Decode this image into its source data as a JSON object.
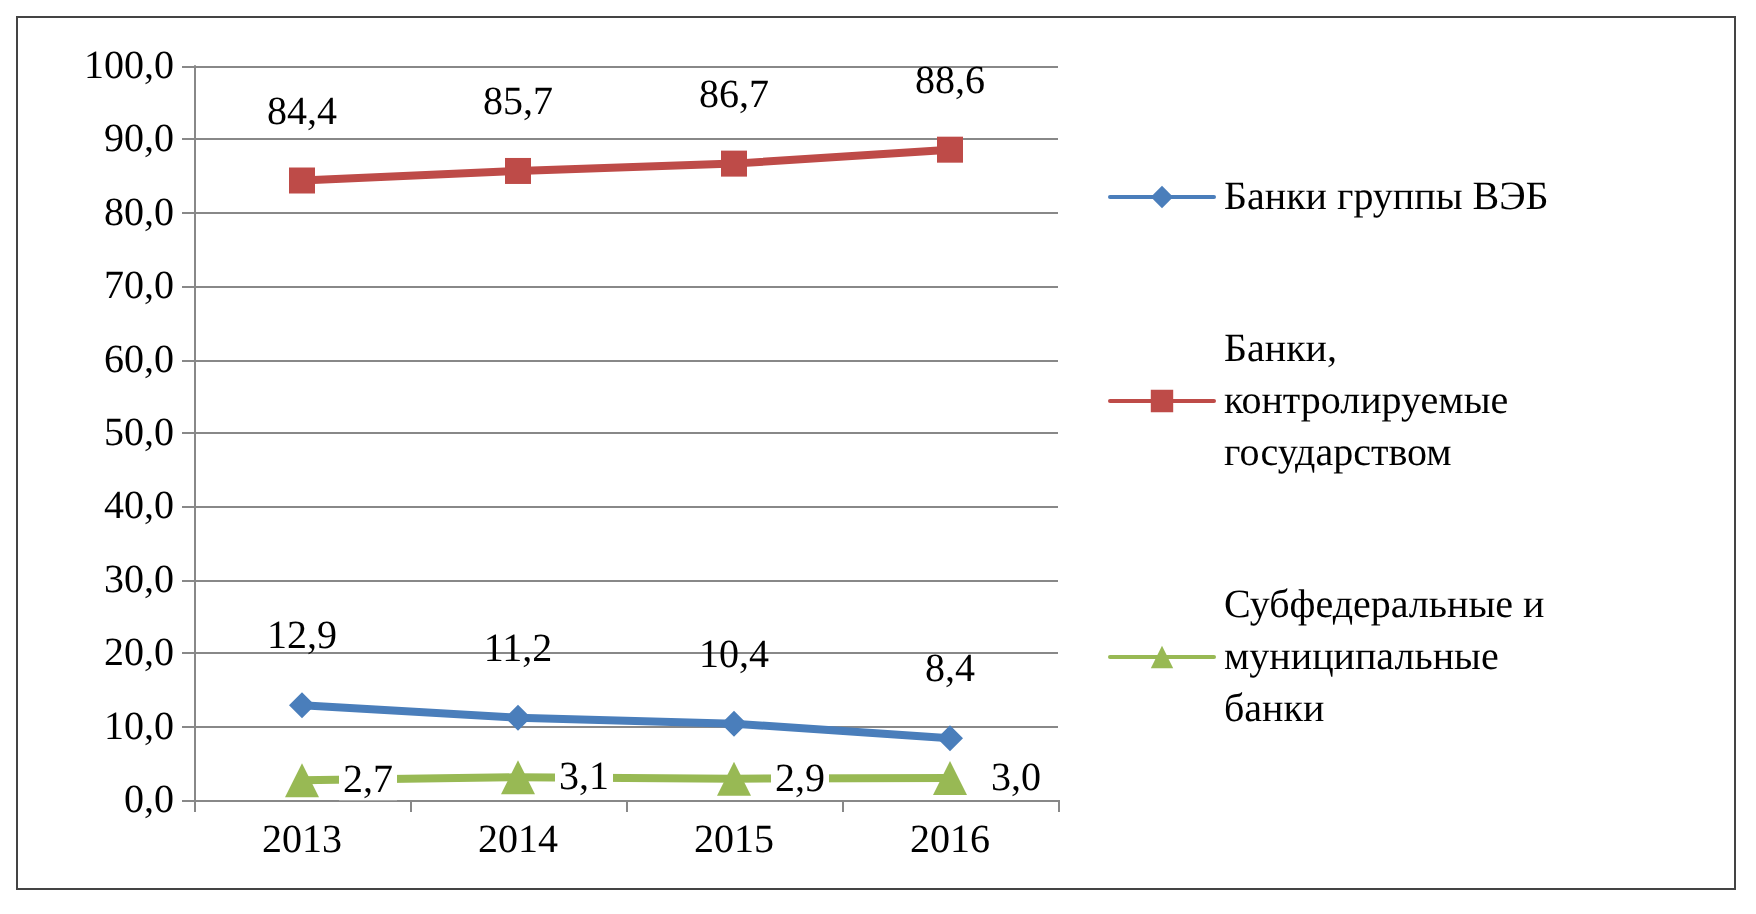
{
  "chart_data": {
    "type": "line",
    "categories": [
      "2013",
      "2014",
      "2015",
      "2016"
    ],
    "series": [
      {
        "name": "Банки группы ВЭБ",
        "color": "#4a7ebb",
        "marker": "diamond",
        "values": [
          12.9,
          11.2,
          10.4,
          8.4
        ],
        "value_labels": [
          "12,9",
          "11,2",
          "10,4",
          "8,4"
        ]
      },
      {
        "name": "Банки, контролируемые государством",
        "color": "#be4b48",
        "marker": "square",
        "values": [
          84.4,
          85.7,
          86.7,
          88.6
        ],
        "value_labels": [
          "84,4",
          "85,7",
          "86,7",
          "88,6"
        ]
      },
      {
        "name": "Субфедеральные и муниципальные банки",
        "color": "#98b954",
        "marker": "triangle",
        "values": [
          2.7,
          3.1,
          2.9,
          3.0
        ],
        "value_labels": [
          "2,7",
          "3,1",
          "2,9",
          "3,0"
        ]
      }
    ],
    "ylim": [
      0,
      100
    ],
    "yticks": [
      {
        "value": 0,
        "label": "0,0"
      },
      {
        "value": 10,
        "label": "10,0"
      },
      {
        "value": 20,
        "label": "20,0"
      },
      {
        "value": 30,
        "label": "30,0"
      },
      {
        "value": 40,
        "label": "40,0"
      },
      {
        "value": 50,
        "label": "50,0"
      },
      {
        "value": 60,
        "label": "60,0"
      },
      {
        "value": 70,
        "label": "70,0"
      },
      {
        "value": 80,
        "label": "80,0"
      },
      {
        "value": 90,
        "label": "90,0"
      },
      {
        "value": 100,
        "label": "100,0"
      }
    ],
    "grid": "y",
    "legend": "right",
    "line_style": "solid"
  }
}
